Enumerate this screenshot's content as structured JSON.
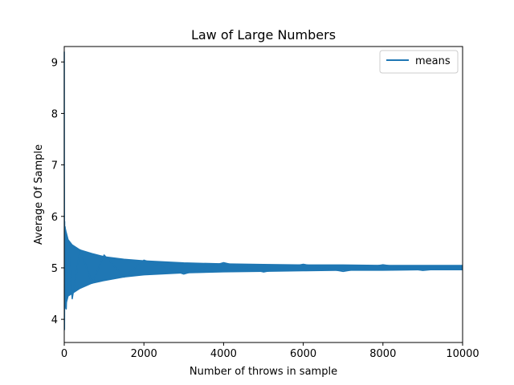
{
  "chart_data": {
    "type": "line",
    "title": "Law of Large Numbers",
    "xlabel": "Number of throws in sample",
    "ylabel": "Average Of Sample",
    "xlim": [
      0,
      10000
    ],
    "ylim": [
      3.55,
      9.3
    ],
    "x_ticks": [
      0,
      2000,
      4000,
      6000,
      8000,
      10000
    ],
    "x_tick_labels": [
      "0",
      "2000",
      "4000",
      "6000",
      "8000",
      "10000"
    ],
    "y_ticks": [
      4,
      5,
      6,
      7,
      8,
      9
    ],
    "y_tick_labels": [
      "4",
      "5",
      "6",
      "7",
      "8",
      "9"
    ],
    "grid": false,
    "legend": {
      "placement": "top-right",
      "entries": [
        "means"
      ]
    },
    "series": [
      {
        "name": "means",
        "color": "#1f77b4",
        "x": [
          1,
          2,
          3,
          4,
          5,
          6,
          8,
          10,
          15,
          20,
          30,
          50,
          100,
          200,
          400,
          700,
          1000,
          1500,
          2000,
          3000,
          4000,
          5000,
          6000,
          7000,
          8000,
          9000,
          10000
        ],
        "y": [
          9.2,
          7.0,
          6.8,
          6.5,
          4.2,
          3.8,
          4.3,
          5.9,
          4.3,
          5.8,
          5.6,
          4.2,
          5.5,
          4.4,
          5.35,
          4.7,
          5.25,
          4.82,
          5.15,
          4.88,
          5.1,
          4.92,
          5.07,
          4.93,
          5.06,
          4.95,
          5.02
        ]
      }
    ],
    "band": {
      "x": [
        20,
        50,
        100,
        200,
        400,
        700,
        1000,
        1500,
        2000,
        3000,
        4000,
        5000,
        6000,
        7000,
        8000,
        9000,
        10000
      ],
      "low": [
        4.2,
        4.3,
        4.45,
        4.5,
        4.6,
        4.7,
        4.75,
        4.82,
        4.86,
        4.9,
        4.92,
        4.93,
        4.94,
        4.95,
        4.95,
        4.96,
        4.96
      ],
      "high": [
        5.8,
        5.7,
        5.55,
        5.45,
        5.35,
        5.28,
        5.22,
        5.17,
        5.14,
        5.1,
        5.08,
        5.07,
        5.06,
        5.06,
        5.05,
        5.05,
        5.05
      ]
    }
  }
}
